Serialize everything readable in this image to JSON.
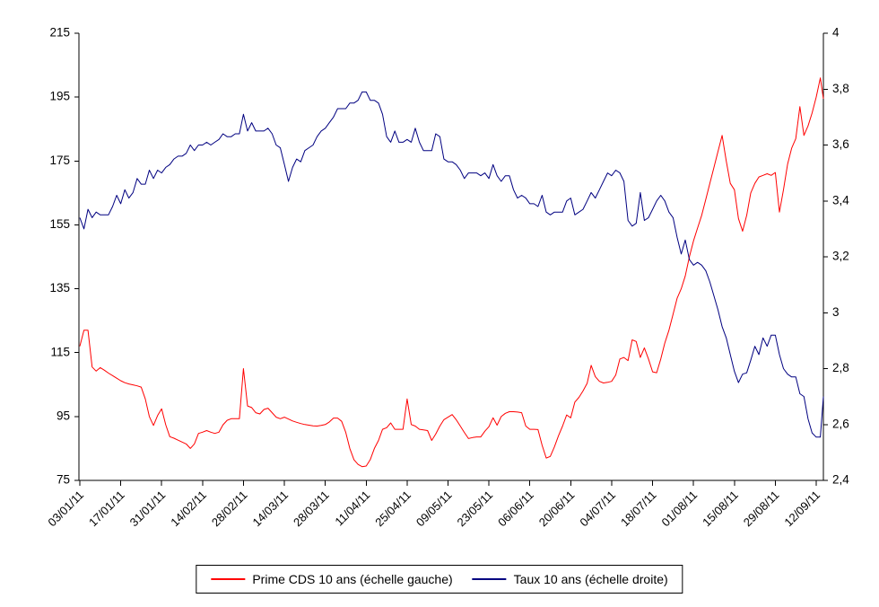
{
  "chart_data": {
    "type": "line",
    "title": "",
    "x_tick_labels": [
      "03/01/11",
      "17/01/11",
      "31/01/11",
      "14/02/11",
      "28/02/11",
      "14/03/11",
      "28/03/11",
      "11/04/11",
      "25/04/11",
      "09/05/11",
      "23/05/11",
      "06/06/11",
      "20/06/11",
      "04/07/11",
      "18/07/11",
      "01/08/11",
      "15/08/11",
      "29/08/11",
      "12/09/11"
    ],
    "x_tick_step_points": 10,
    "grid": false,
    "legend_position": "bottom-center",
    "left_axis": {
      "min": 75,
      "max": 215,
      "tick_labels": [
        "215",
        "195",
        "175",
        "155",
        "135",
        "115",
        "95",
        "75"
      ]
    },
    "right_axis": {
      "min": 2.4,
      "max": 4,
      "tick_labels": [
        "4",
        "3,8",
        "3,6",
        "3,4",
        "3,2",
        "3",
        "2,8",
        "2,6",
        "2,4"
      ]
    },
    "series": [
      {
        "name": "Prime CDS 10 ans (échelle gauche)",
        "color": "#ff0000",
        "axis": "left",
        "values": [
          117,
          122,
          122,
          110.5,
          109.2,
          110.3,
          109.5,
          108.6,
          107.8,
          107,
          106.2,
          105.6,
          105.2,
          104.9,
          104.6,
          104.2,
          100.5,
          95,
          92.2,
          95.3,
          97.4,
          92.4,
          88.7,
          88.2,
          87.6,
          87,
          86.4,
          85,
          86.4,
          89.7,
          90.1,
          90.6,
          90.1,
          89.7,
          90.1,
          92.4,
          93.8,
          94.3,
          94.3,
          94.3,
          110,
          98.3,
          97.8,
          96.2,
          95.8,
          97.2,
          97.6,
          96.2,
          94.8,
          94.3,
          94.8,
          94.2,
          93.6,
          93.2,
          92.8,
          92.5,
          92.3,
          92.1,
          92,
          92.2,
          92.5,
          93.3,
          94.5,
          94.5,
          93.5,
          90,
          85,
          81.5,
          80,
          79.3,
          79.5,
          81.5,
          85,
          87.5,
          91,
          91.5,
          93,
          91,
          91,
          91,
          100.5,
          92.5,
          92,
          91,
          90.8,
          90.6,
          87.5,
          89.5,
          92,
          94,
          94.8,
          95.6,
          94,
          92,
          90,
          88.1,
          88.4,
          88.6,
          88.6,
          90.4,
          91.8,
          94.6,
          92.3,
          95,
          96,
          96.5,
          96.5,
          96.4,
          96.2,
          92,
          91,
          91,
          90.9,
          86,
          82,
          82.5,
          85.5,
          89,
          92,
          95.5,
          94.6,
          99.5,
          101,
          103,
          105.4,
          111,
          107.5,
          106,
          105.5,
          105.7,
          106,
          108,
          113,
          113.5,
          112.5,
          119,
          118.5,
          113.5,
          116.5,
          113,
          109,
          108.7,
          113,
          118,
          122,
          127,
          132,
          135,
          139,
          145,
          150,
          154,
          158,
          163,
          168,
          173,
          178,
          183,
          175,
          168,
          166,
          157,
          153,
          158,
          165,
          168,
          170,
          170.5,
          171,
          170.5,
          171.4,
          159,
          166,
          174,
          179,
          182,
          192,
          183,
          186,
          190,
          195,
          201,
          194.5
        ]
      },
      {
        "name": "Taux 10 ans (échelle droite)",
        "color": "#000080",
        "axis": "right",
        "values": [
          3.34,
          3.3,
          3.37,
          3.34,
          3.36,
          3.35,
          3.35,
          3.35,
          3.38,
          3.42,
          3.39,
          3.44,
          3.41,
          3.43,
          3.48,
          3.46,
          3.46,
          3.51,
          3.48,
          3.51,
          3.5,
          3.52,
          3.53,
          3.55,
          3.56,
          3.56,
          3.57,
          3.6,
          3.58,
          3.6,
          3.6,
          3.61,
          3.6,
          3.61,
          3.62,
          3.64,
          3.63,
          3.63,
          3.64,
          3.64,
          3.71,
          3.65,
          3.68,
          3.65,
          3.65,
          3.65,
          3.66,
          3.64,
          3.6,
          3.59,
          3.53,
          3.47,
          3.52,
          3.55,
          3.54,
          3.58,
          3.59,
          3.6,
          3.63,
          3.65,
          3.66,
          3.68,
          3.7,
          3.73,
          3.73,
          3.73,
          3.75,
          3.75,
          3.76,
          3.79,
          3.79,
          3.76,
          3.76,
          3.75,
          3.71,
          3.63,
          3.61,
          3.65,
          3.61,
          3.61,
          3.62,
          3.61,
          3.66,
          3.61,
          3.58,
          3.58,
          3.58,
          3.64,
          3.63,
          3.55,
          3.54,
          3.54,
          3.53,
          3.51,
          3.48,
          3.5,
          3.5,
          3.5,
          3.49,
          3.5,
          3.48,
          3.53,
          3.49,
          3.47,
          3.49,
          3.49,
          3.44,
          3.41,
          3.42,
          3.41,
          3.39,
          3.39,
          3.38,
          3.42,
          3.36,
          3.35,
          3.36,
          3.36,
          3.36,
          3.4,
          3.41,
          3.35,
          3.36,
          3.37,
          3.4,
          3.43,
          3.41,
          3.44,
          3.47,
          3.5,
          3.49,
          3.51,
          3.5,
          3.47,
          3.33,
          3.31,
          3.32,
          3.43,
          3.33,
          3.34,
          3.37,
          3.4,
          3.42,
          3.4,
          3.36,
          3.34,
          3.27,
          3.21,
          3.26,
          3.19,
          3.17,
          3.18,
          3.17,
          3.15,
          3.11,
          3.06,
          3.01,
          2.95,
          2.91,
          2.85,
          2.79,
          2.75,
          2.78,
          2.785,
          2.83,
          2.88,
          2.85,
          2.91,
          2.88,
          2.92,
          2.92,
          2.85,
          2.8,
          2.78,
          2.77,
          2.77,
          2.71,
          2.7,
          2.62,
          2.57,
          2.555,
          2.555,
          2.7
        ]
      }
    ]
  },
  "legend": {
    "item1": "Prime CDS 10 ans (échelle gauche)",
    "item2": "Taux 10 ans (échelle droite)"
  },
  "colors": {
    "series_red": "#ff0000",
    "series_blue": "#000080",
    "axis": "#000000",
    "background": "#ffffff"
  }
}
